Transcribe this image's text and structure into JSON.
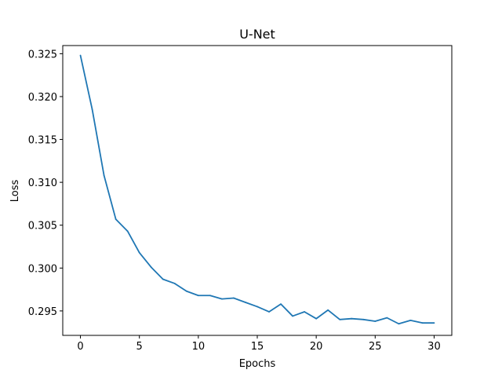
{
  "chart_data": {
    "type": "line",
    "title": "U-Net",
    "xlabel": "Epochs",
    "ylabel": "Loss",
    "xlim": [
      -1.5,
      31.5
    ],
    "ylim": [
      0.29215,
      0.32595
    ],
    "xticks": [
      0,
      5,
      10,
      15,
      20,
      25,
      30
    ],
    "yticks": [
      0.295,
      0.3,
      0.305,
      0.31,
      0.315,
      0.32,
      0.325
    ],
    "ytick_labels": [
      "0.295",
      "0.300",
      "0.305",
      "0.310",
      "0.315",
      "0.320",
      "0.325"
    ],
    "grid": false,
    "series": [
      {
        "color": "#1f77b4",
        "x": [
          0,
          1,
          2,
          3,
          4,
          5,
          6,
          7,
          8,
          9,
          10,
          11,
          12,
          13,
          14,
          15,
          16,
          17,
          18,
          19,
          20,
          21,
          22,
          23,
          24,
          25,
          26,
          27,
          28,
          29,
          30
        ],
        "y": [
          0.3248,
          0.3185,
          0.3108,
          0.3057,
          0.3043,
          0.3018,
          0.3001,
          0.2987,
          0.2982,
          0.2973,
          0.2968,
          0.2968,
          0.2964,
          0.2965,
          0.296,
          0.2955,
          0.2949,
          0.2958,
          0.2944,
          0.2949,
          0.2941,
          0.2951,
          0.294,
          0.2941,
          0.294,
          0.2938,
          0.2942,
          0.2935,
          0.2939,
          0.2936,
          0.2936
        ]
      }
    ]
  }
}
